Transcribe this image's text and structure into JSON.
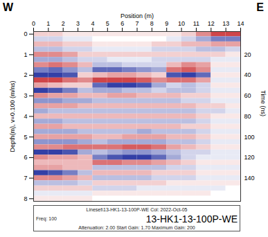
{
  "chart_data": {
    "type": "heatmap",
    "title": "13-HK1-13-100P-WE",
    "direction_labels": [
      "W",
      "E"
    ],
    "caption_lines": [
      "Lineset\\13-HK1-13-100P-WE  Col: 2022-Oct-05",
      "Freq: 100",
      "Attenuation: 2.00 Start Gain: 1.70 Maximum Gain: 200"
    ],
    "x_label": "Position (m)",
    "y_label": "Depth(m), v=0.100 (m/ns)",
    "y2_label": "Time (ns)",
    "xlim": [
      0,
      14
    ],
    "xticks": [
      0,
      1,
      2,
      3,
      4,
      5,
      6,
      7,
      8,
      9,
      10,
      11,
      12,
      13,
      14
    ],
    "ylim": [
      -0.125,
      8.125
    ],
    "yticks": [
      0,
      1,
      2,
      3,
      4,
      5,
      6,
      7,
      8
    ],
    "y2lim": [
      -2.5,
      162.5
    ],
    "y2ticks": [
      20,
      40,
      60,
      80,
      100,
      120,
      140
    ],
    "zlim": [
      -1,
      1
    ],
    "colors": [
      "#1c2a9c",
      "#ffffff",
      "#c3161b"
    ],
    "x": [
      0.5,
      1.5,
      2.5,
      3.5,
      4.5,
      5.5,
      6.5,
      7.5,
      8.5,
      9.5,
      10.5,
      11.5,
      12.5,
      13.5
    ],
    "y": [
      0,
      0.25,
      0.5,
      0.75,
      1,
      1.25,
      1.5,
      1.75,
      2,
      2.25,
      2.5,
      2.75,
      3,
      3.25,
      3.5,
      3.75,
      4,
      4.25,
      4.5,
      4.75,
      5,
      5.25,
      5.5,
      5.75,
      6,
      6.25,
      6.5,
      6.75,
      7,
      7.25,
      7.5,
      7.75,
      8
    ],
    "cells": [
      [
        0.2,
        0.2,
        0.1,
        0.1,
        0.1,
        0.1,
        0.1,
        0.1,
        0.1,
        0.1,
        0.2,
        0.5,
        0.8,
        0.8
      ],
      [
        -0.2,
        -0.2,
        -0.1,
        -0.1,
        0,
        0,
        0,
        0,
        0,
        -0.1,
        -0.2,
        -0.4,
        -0.6,
        -0.6
      ],
      [
        0.3,
        0.3,
        0.2,
        0.2,
        0.1,
        0.1,
        0.1,
        0.1,
        0.2,
        0.2,
        0.3,
        0.3,
        0.4,
        0.4
      ],
      [
        -0.3,
        -0.3,
        -0.2,
        -0.2,
        -0.1,
        -0.1,
        -0.1,
        -0.1,
        -0.2,
        -0.2,
        -0.2,
        -0.3,
        -0.3,
        -0.2
      ],
      [
        0.5,
        0.5,
        0.4,
        0.2,
        0.2,
        0.2,
        0.2,
        0.2,
        0.2,
        0.2,
        0.2,
        0.2,
        0.2,
        0.1
      ],
      [
        -0.4,
        -0.4,
        -0.3,
        -0.2,
        -0.2,
        -0.1,
        -0.1,
        -0.1,
        -0.2,
        -0.2,
        -0.2,
        -0.2,
        -0.1,
        -0.1
      ],
      [
        0.5,
        0.6,
        0.5,
        0.3,
        -0.3,
        -0.3,
        -0.2,
        -0.2,
        -0.2,
        0.3,
        0.5,
        0.4,
        0.1,
        0.1
      ],
      [
        -0.6,
        -0.7,
        -0.5,
        -0.3,
        -0.7,
        -0.7,
        -0.6,
        -0.5,
        -0.4,
        0.6,
        0.7,
        0.5,
        -0.1,
        -0.1
      ],
      [
        -0.9,
        -0.9,
        -0.8,
        0.2,
        0.3,
        0.4,
        0.4,
        0.3,
        0.2,
        -0.8,
        -0.9,
        -0.7,
        0.1,
        0.1
      ],
      [
        0.8,
        0.8,
        0.6,
        0.5,
        0.8,
        0.8,
        0.8,
        0.7,
        0.5,
        0.6,
        0.6,
        0.4,
        -0.1,
        -0.1
      ],
      [
        0.4,
        0.3,
        0.2,
        0.2,
        -0.7,
        -0.9,
        -0.9,
        -0.8,
        -0.4,
        -0.2,
        -0.3,
        -0.2,
        0.1,
        0.1
      ],
      [
        -0.9,
        -0.8,
        -0.6,
        -0.3,
        -0.4,
        -0.4,
        -0.3,
        -0.3,
        -0.2,
        -0.3,
        -0.3,
        -0.2,
        -0.1,
        -0.1
      ],
      [
        0.5,
        0.4,
        0.4,
        0.3,
        0.3,
        0.4,
        0.4,
        0.3,
        0.3,
        0.3,
        0.2,
        0.2,
        0.1,
        0.1
      ],
      [
        -0.5,
        -0.5,
        -0.4,
        -0.4,
        -0.3,
        -0.3,
        -0.3,
        -0.3,
        -0.3,
        -0.3,
        -0.2,
        -0.2,
        -0.1,
        -0.1
      ],
      [
        0.4,
        0.4,
        0.4,
        0.3,
        0.3,
        0.3,
        0.3,
        0.3,
        0.3,
        0.3,
        0.3,
        0.2,
        0.2,
        0.1
      ],
      [
        -0.4,
        -0.3,
        -0.3,
        -0.3,
        -0.3,
        -0.3,
        -0.3,
        -0.3,
        -0.3,
        -0.3,
        -0.3,
        -0.2,
        -0.2,
        -0.1
      ],
      [
        0.3,
        0.3,
        0.3,
        0.3,
        0.3,
        0.3,
        0.3,
        0.3,
        0.3,
        0.3,
        0.3,
        0.2,
        0.1,
        0.1
      ],
      [
        -0.4,
        -0.4,
        -0.3,
        -0.3,
        -0.3,
        -0.3,
        -0.3,
        -0.3,
        -0.3,
        -0.3,
        -0.3,
        -0.2,
        -0.1,
        -0.1
      ],
      [
        0.4,
        0.4,
        0.3,
        0.3,
        0.3,
        0.3,
        0.3,
        0.3,
        0.3,
        0.3,
        0.2,
        0.2,
        0.1,
        0.1
      ],
      [
        -0.4,
        -0.4,
        -0.4,
        -0.3,
        -0.3,
        -0.3,
        -0.3,
        -0.4,
        -0.3,
        -0.3,
        -0.3,
        -0.2,
        -0.1,
        -0.1
      ],
      [
        0.4,
        0.4,
        0.4,
        0.4,
        0.3,
        0.3,
        0.4,
        0.4,
        0.4,
        0.3,
        0.3,
        0.2,
        0.1,
        0.1
      ],
      [
        -0.5,
        -0.5,
        -0.5,
        -0.4,
        -0.3,
        -0.4,
        -0.4,
        -0.4,
        -0.4,
        -0.3,
        -0.3,
        -0.2,
        -0.1,
        -0.1
      ],
      [
        0.5,
        0.5,
        0.6,
        0.6,
        0.6,
        0.6,
        0.7,
        0.7,
        0.6,
        0.4,
        0.3,
        0.2,
        0.1,
        0.1
      ],
      [
        -0.9,
        -0.9,
        -0.8,
        -0.4,
        -0.3,
        -0.4,
        -0.5,
        -0.5,
        -0.4,
        -0.3,
        -0.2,
        -0.2,
        -0.1,
        -0.1
      ],
      [
        0.5,
        0.4,
        0.4,
        0.3,
        -0.6,
        -0.8,
        -0.9,
        -0.9,
        -0.7,
        -0.4,
        -0.2,
        -0.1,
        -0.1,
        -0.1
      ],
      [
        0.3,
        0.3,
        0.3,
        0.3,
        0.6,
        0.6,
        0.5,
        0.5,
        0.4,
        0.3,
        0.2,
        0.1,
        0.1,
        0.1
      ],
      [
        0.4,
        0.4,
        0.3,
        0.3,
        -0.3,
        -0.3,
        -0.3,
        -0.3,
        -0.3,
        -0.2,
        -0.2,
        -0.1,
        -0.1,
        -0.1
      ],
      [
        -0.9,
        -0.8,
        -0.6,
        -0.3,
        0.3,
        0.3,
        0.3,
        0.3,
        0.2,
        0.2,
        0.2,
        0.1,
        0.1,
        0.1
      ],
      [
        0.5,
        0.5,
        0.4,
        0.3,
        -0.3,
        -0.3,
        -0.3,
        -0.3,
        -0.2,
        -0.2,
        -0.2,
        -0.1,
        -0.1,
        -0.1
      ],
      [
        -0.3,
        -0.3,
        -0.3,
        -0.2,
        0.2,
        0.2,
        0.2,
        0.2,
        0.2,
        0.1,
        0.1,
        0.1,
        0.1,
        0.1
      ],
      [
        0.2,
        0.2,
        0.2,
        0.2,
        -0.2,
        -0.2,
        -0.2,
        -0.1,
        -0.1,
        -0.1,
        -0.1,
        -0.1,
        -0.1,
        0
      ],
      [
        -0.1,
        -0.1,
        -0.1,
        -0.1,
        0.1,
        0.1,
        0.1,
        0.1,
        0.1,
        0.1,
        0.1,
        0.1,
        0,
        0
      ],
      [
        0.1,
        0.1,
        0.1,
        0.1,
        0,
        0,
        0,
        0,
        0,
        0,
        0,
        0,
        0,
        0
      ]
    ]
  }
}
